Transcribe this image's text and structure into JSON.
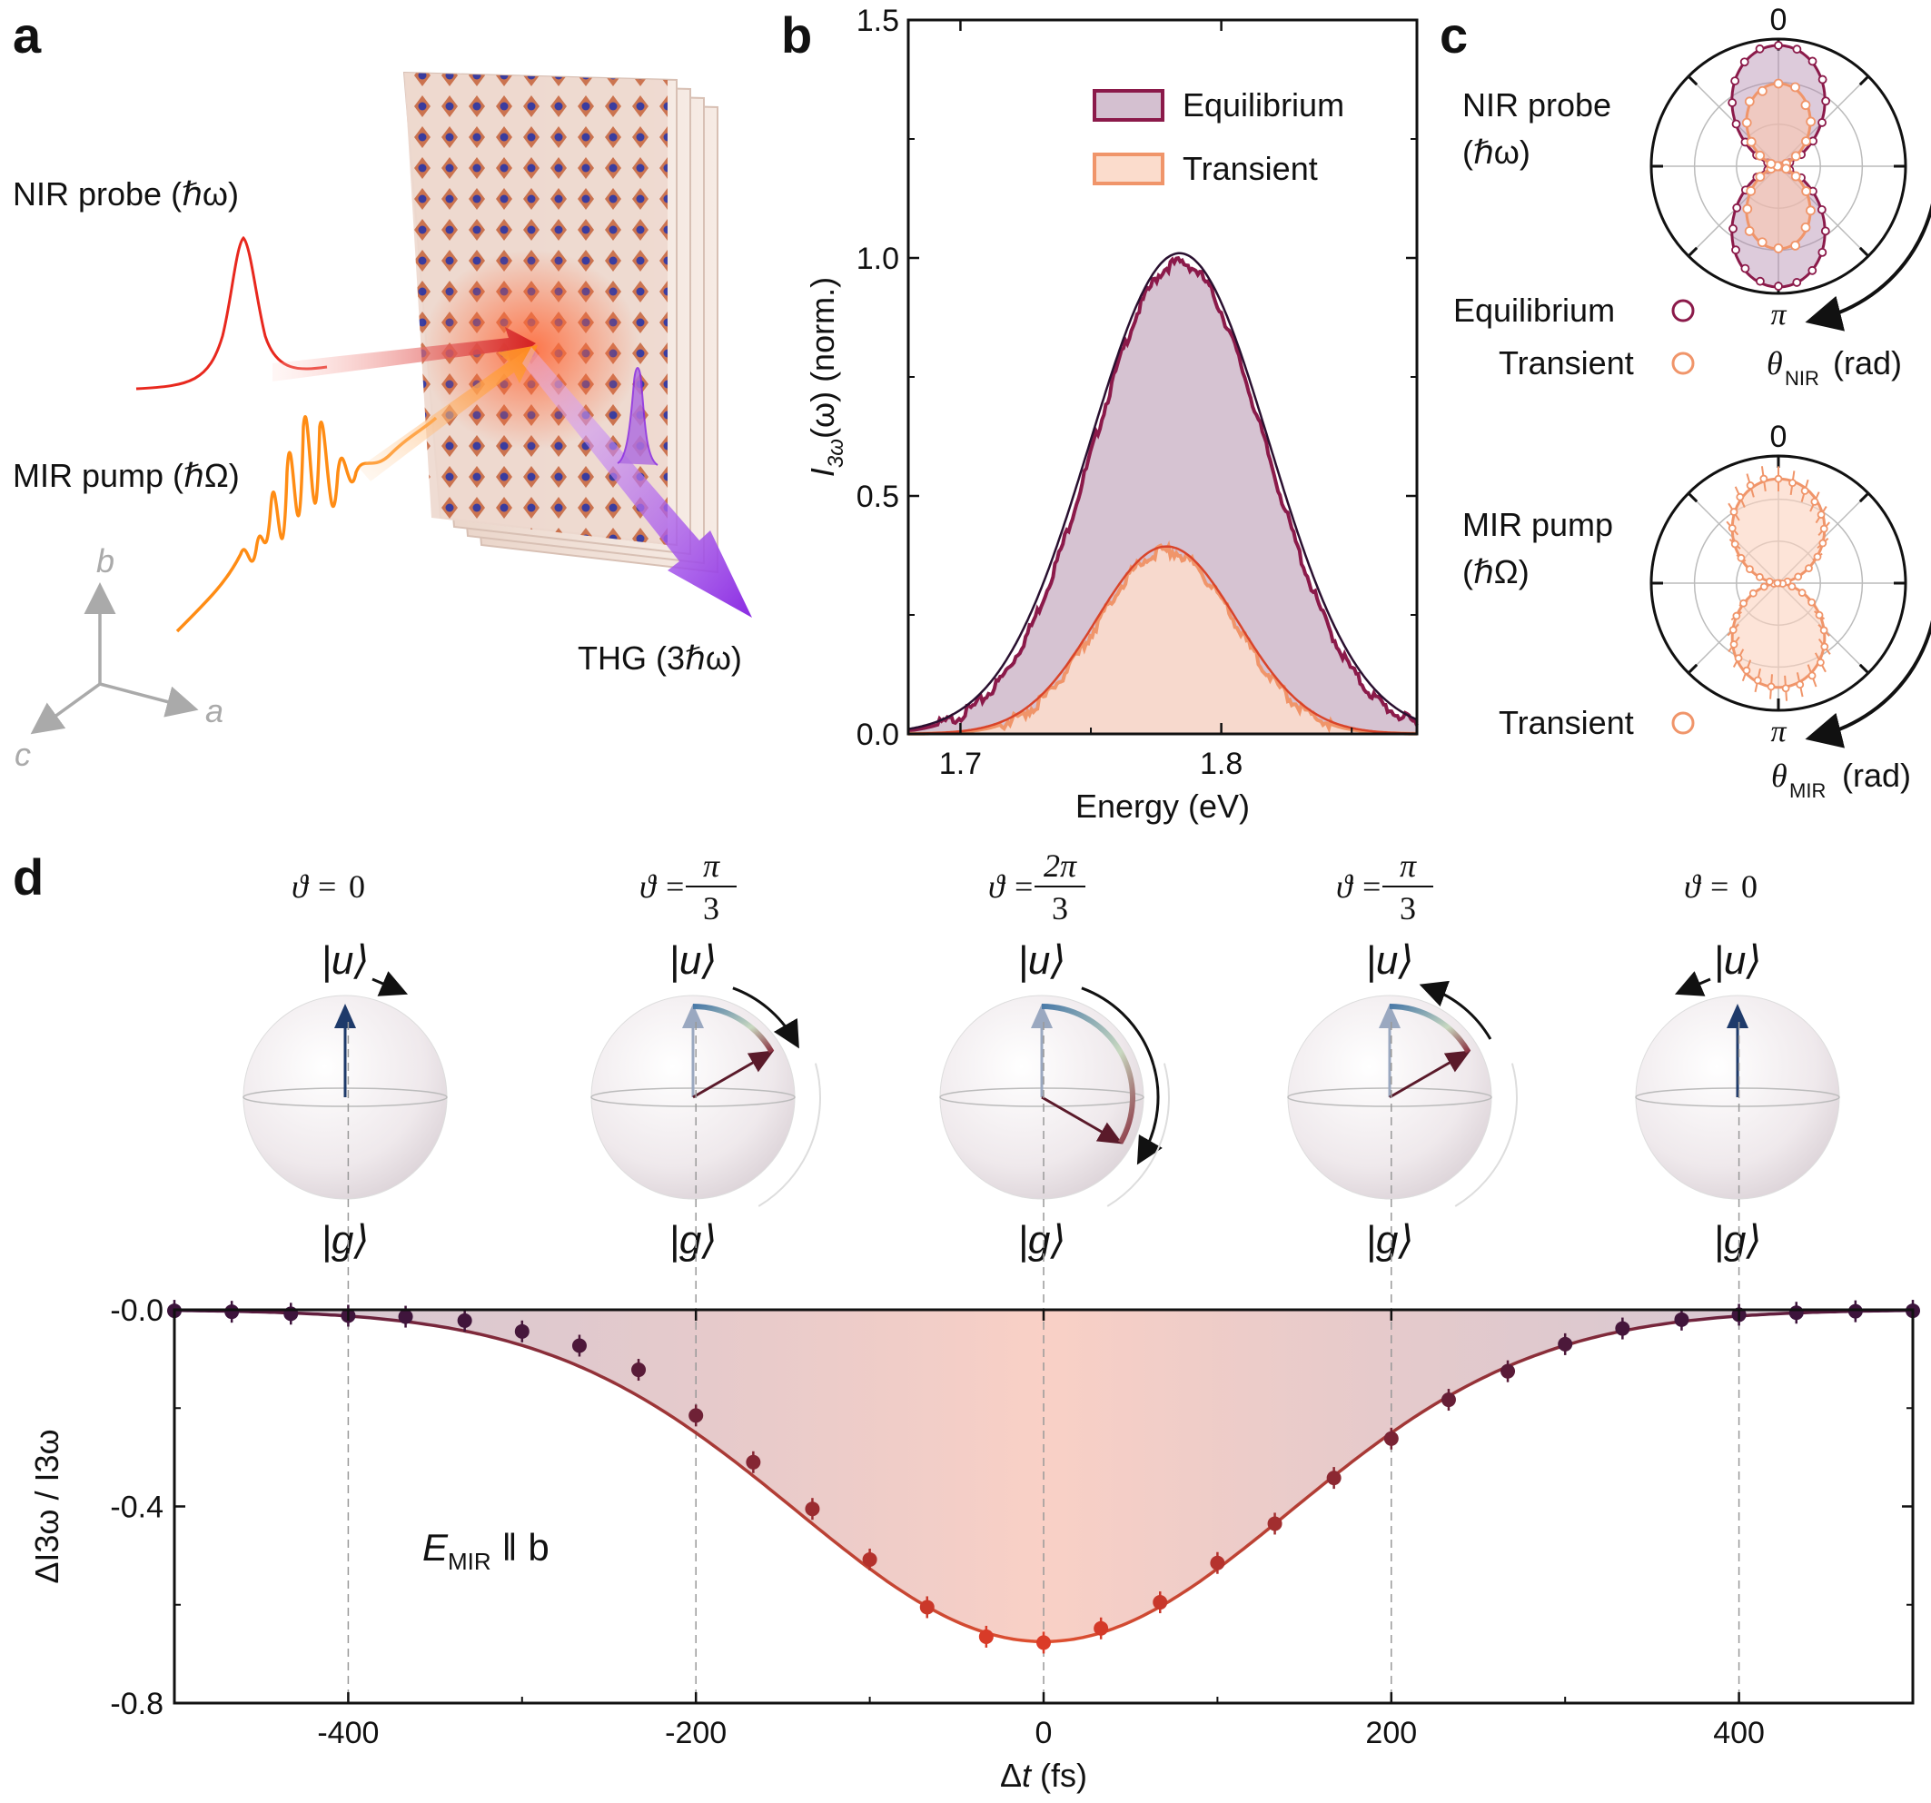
{
  "panels": {
    "a": {
      "letter": "a",
      "probe_label": "NIR probe (ℏω)",
      "pump_label": "MIR pump (ℏΩ)",
      "thg_label": "THG (3ℏω)",
      "axis_b": "b",
      "axis_a": "a",
      "axis_c": "c"
    },
    "b": {
      "letter": "b"
    },
    "c": {
      "letter": "c",
      "top": {
        "label_line1": "NIR probe",
        "label_line2": "(ℏω)",
        "zero": "0",
        "pi": "π",
        "legend_equilibrium": "Equilibrium",
        "legend_transient": "Transient",
        "angle_symbol": "θ",
        "angle_sub": "NIR",
        "angle_unit": "(rad)"
      },
      "bottom": {
        "label_line1": "MIR pump",
        "label_line2": "(ℏΩ)",
        "zero": "0",
        "pi": "π",
        "legend_transient": "Transient",
        "angle_symbol": "θ",
        "angle_sub": "MIR",
        "angle_unit": "(rad)"
      }
    },
    "d": {
      "letter": "d",
      "spheres": [
        {
          "theta_num": "0",
          "theta_den": "",
          "top": "|u⟩",
          "bottom": "|g⟩"
        },
        {
          "theta_num": "π",
          "theta_den": "3",
          "top": "|u⟩",
          "bottom": "|g⟩"
        },
        {
          "theta_num": "2π",
          "theta_den": "3",
          "top": "|u⟩",
          "bottom": "|g⟩"
        },
        {
          "theta_num": "π",
          "theta_den": "3",
          "top": "|u⟩",
          "bottom": "|g⟩"
        },
        {
          "theta_num": "0",
          "theta_den": "",
          "top": "|u⟩",
          "bottom": "|g⟩"
        }
      ],
      "theta_symbol": "ϑ =",
      "field_label": "E",
      "field_sub": "MIR",
      "field_rest": " ‖ b"
    }
  },
  "chart_data": [
    {
      "id": "b",
      "type": "area",
      "xlabel": "Energy (eV)",
      "ylabel_main": "I",
      "ylabel_sub": "3ω",
      "ylabel_rest": "(ω) (norm.)",
      "xlim": [
        1.68,
        1.875
      ],
      "ylim": [
        0,
        1.5
      ],
      "xticks": [
        1.7,
        1.8
      ],
      "xtick_labels": [
        "1.7",
        "1.8"
      ],
      "yticks": [
        0,
        0.5,
        1.0,
        1.5
      ],
      "ytick_labels": [
        "0.0",
        "0.5",
        "1.0",
        "1.5"
      ],
      "series": [
        {
          "name": "Equilibrium",
          "peak": 1.0,
          "center": 1.784,
          "sigma": 0.033,
          "color": "#8b1a4a",
          "fill": "#d4c0d0",
          "fit_color": "#2a1030"
        },
        {
          "name": "Transient",
          "peak": 0.39,
          "center": 1.779,
          "sigma": 0.026,
          "color": "#f0956a",
          "fill": "#fbdccc",
          "fit_color": "#d9442a"
        }
      ],
      "legend": [
        "Equilibrium",
        "Transient"
      ]
    },
    {
      "id": "d",
      "type": "scatter",
      "xlabel": "Δt (fs)",
      "ylabel": "ΔI3ω / I3ω",
      "xlim": [
        -500,
        500
      ],
      "ylim": [
        -0.8,
        0.0
      ],
      "xticks": [
        -400,
        -200,
        0,
        200,
        400
      ],
      "xtick_labels": [
        "-400",
        "-200",
        "0",
        "200",
        "400"
      ],
      "yticks": [
        0.0,
        -0.4,
        -0.8
      ],
      "ytick_labels": [
        "-0.0",
        "-0.4",
        "-0.8"
      ],
      "x": [
        -500,
        -467,
        -433,
        -400,
        -367,
        -333,
        -300,
        -267,
        -233,
        -200,
        -167,
        -133,
        -100,
        -67,
        -33,
        0,
        33,
        67,
        100,
        133,
        167,
        200,
        233,
        267,
        300,
        333,
        367,
        400,
        433,
        467,
        500
      ],
      "y": [
        -0.002,
        -0.004,
        -0.008,
        -0.012,
        -0.014,
        -0.022,
        -0.044,
        -0.073,
        -0.122,
        -0.215,
        -0.31,
        -0.405,
        -0.508,
        -0.605,
        -0.665,
        -0.677,
        -0.648,
        -0.595,
        -0.515,
        -0.435,
        -0.342,
        -0.262,
        -0.183,
        -0.125,
        -0.07,
        -0.038,
        -0.02,
        -0.01,
        -0.006,
        -0.003,
        -0.002
      ],
      "fit": {
        "amplitude": -0.675,
        "sigma": 142
      },
      "vlines": [
        -400,
        -200,
        0,
        200,
        400
      ]
    }
  ]
}
